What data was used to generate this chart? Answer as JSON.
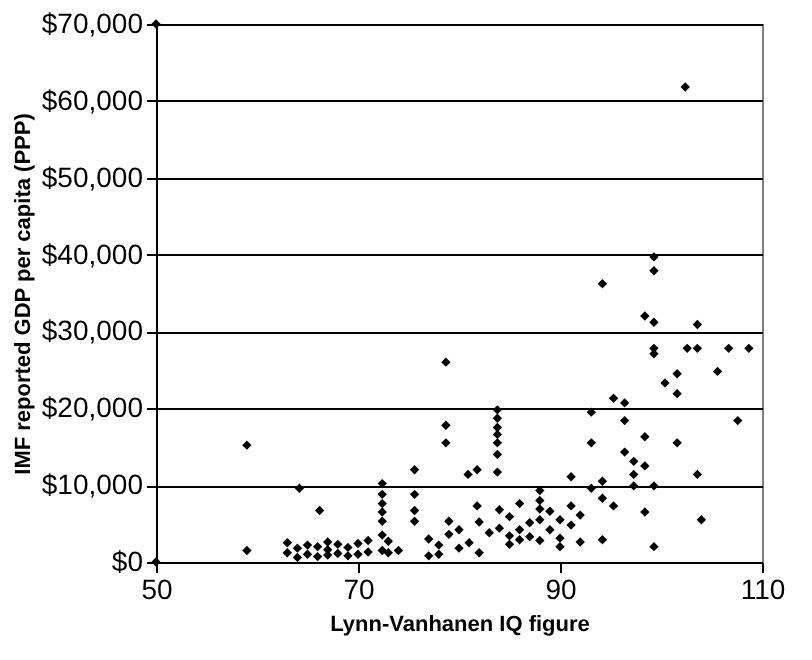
{
  "chart_data": {
    "type": "scatter",
    "xlabel": "Lynn-Vanhanen IQ figure",
    "ylabel": "IMF reported GDP per capita (PPP)",
    "marker": "diamond",
    "grid": "y",
    "xlim": [
      50,
      110
    ],
    "xticks": [
      50,
      70,
      90,
      110
    ],
    "ylim": [
      0,
      70000
    ],
    "yticks": [
      {
        "value": 0,
        "label": "$0"
      },
      {
        "value": 10000,
        "label": "$10,000"
      },
      {
        "value": 20000,
        "label": "$20,000"
      },
      {
        "value": 30000,
        "label": "$30,000"
      },
      {
        "value": 40000,
        "label": "$40,000"
      },
      {
        "value": 50000,
        "label": "$50,000"
      },
      {
        "value": 60000,
        "label": "$60,000"
      },
      {
        "value": 70000,
        "label": "$70,000"
      }
    ],
    "series": [
      {
        "color": "#000000",
        "x": [
          50,
          50,
          59,
          59,
          64.2,
          66.2,
          63,
          63,
          64,
          64,
          65,
          65,
          66,
          66,
          67,
          67,
          67,
          68,
          68,
          69,
          69,
          70,
          70,
          71,
          71,
          72.4,
          72.4,
          72.4,
          72.4,
          72.4,
          72.4,
          72.4,
          73,
          73,
          75.6,
          75.6,
          75.6,
          75.6,
          74,
          77,
          77,
          78,
          78.7,
          78.7,
          78.7,
          78,
          79,
          79,
          80,
          80,
          80.9,
          81.8,
          81.8,
          81,
          82,
          82,
          83,
          83.8,
          83.8,
          83.8,
          83.8,
          83.8,
          83.8,
          83.8,
          84,
          84,
          85,
          85,
          85,
          86,
          86,
          86,
          87,
          87,
          88,
          88,
          88,
          88,
          88,
          89,
          89,
          90,
          90,
          90,
          91.1,
          91.1,
          91.1,
          92,
          92,
          93.1,
          93.1,
          93.1,
          94.2,
          94.2,
          94.2,
          94.2,
          95.3,
          95.3,
          96.4,
          96.4,
          96.4,
          97.3,
          97.3,
          97.3,
          98.4,
          98.4,
          98.4,
          98.4,
          99.3,
          99.3,
          99.3,
          99.3,
          99.3,
          99.3,
          99.3,
          100.4,
          101.6,
          101.6,
          101.6,
          102.4,
          102.6,
          103.6,
          103.6,
          103.6,
          104,
          105.6,
          106.7,
          107.6,
          108.7
        ],
        "values": [
          70000,
          0,
          15200,
          1500,
          9600,
          6700,
          1200,
          2500,
          600,
          1800,
          1000,
          2200,
          700,
          2000,
          900,
          1600,
          2600,
          1100,
          2300,
          800,
          1900,
          1000,
          2400,
          1300,
          2800,
          10200,
          8800,
          7600,
          6500,
          5300,
          3500,
          1500,
          2700,
          1200,
          12000,
          8800,
          6700,
          5300,
          1500,
          3000,
          800,
          2200,
          26000,
          17800,
          15500,
          1000,
          3600,
          5300,
          1800,
          4200,
          11400,
          12000,
          7300,
          2500,
          5200,
          1200,
          3800,
          19800,
          18700,
          17500,
          16600,
          15500,
          14000,
          11700,
          4400,
          6800,
          2300,
          3400,
          5900,
          4200,
          7600,
          2900,
          5100,
          3300,
          9300,
          8000,
          6900,
          5500,
          2800,
          4200,
          6600,
          3100,
          5500,
          2000,
          11100,
          7300,
          4800,
          2600,
          6100,
          19500,
          15500,
          9600,
          36200,
          10500,
          8300,
          2900,
          21300,
          7300,
          20700,
          18400,
          14300,
          13100,
          11400,
          9900,
          6500,
          32000,
          16300,
          12500,
          9900,
          39700,
          37900,
          31200,
          27800,
          27100,
          2000,
          23300,
          24500,
          21900,
          15500,
          61800,
          27800,
          30900,
          27800,
          11400,
          5500,
          24800,
          27800,
          18400,
          27800
        ]
      }
    ]
  }
}
